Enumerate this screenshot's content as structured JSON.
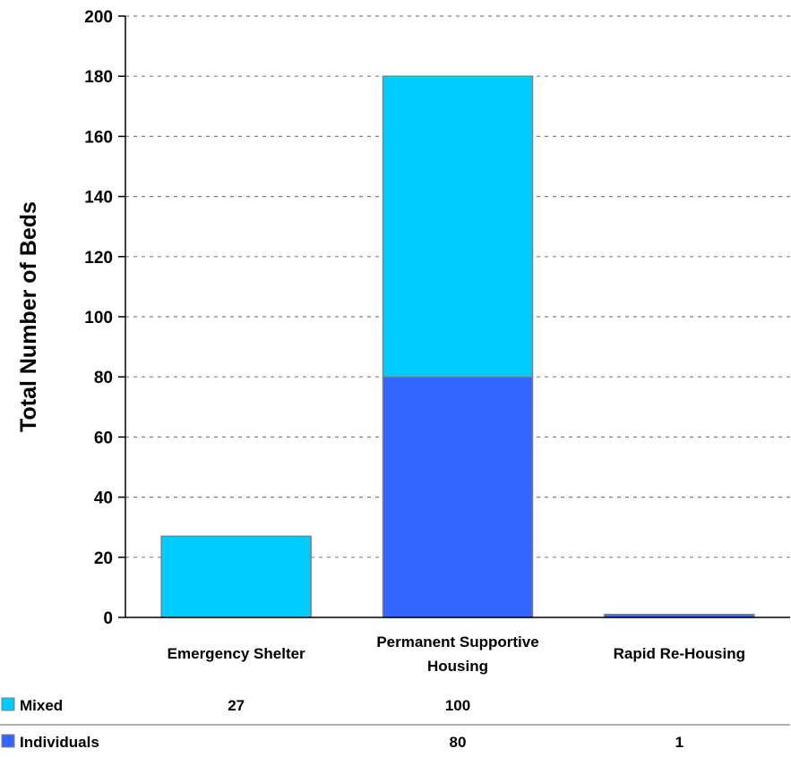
{
  "chart_data": {
    "type": "bar",
    "stacked": true,
    "categories": [
      "Emergency Shelter",
      "Permanent Supportive Housing",
      "Rapid Re-Housing"
    ],
    "category_lines": [
      [
        "Emergency Shelter"
      ],
      [
        "Permanent Supportive",
        "Housing"
      ],
      [
        "Rapid Re-Housing"
      ]
    ],
    "series": [
      {
        "name": "Individuals",
        "values": [
          null,
          80,
          1
        ],
        "labels": [
          "",
          "80",
          "1"
        ],
        "color": "#3366FF"
      },
      {
        "name": "Mixed",
        "values": [
          27,
          100,
          null
        ],
        "labels": [
          "27",
          "100",
          ""
        ],
        "color": "#00CCFF"
      }
    ],
    "table_order": [
      1,
      0
    ],
    "ylabel": "Total Number of Beds",
    "xlabel": "",
    "title": "",
    "ylim": [
      0,
      200
    ],
    "yticks": [
      0,
      20,
      40,
      60,
      80,
      100,
      120,
      140,
      160,
      180,
      200
    ],
    "grid": true,
    "legend": "data-table-below"
  }
}
